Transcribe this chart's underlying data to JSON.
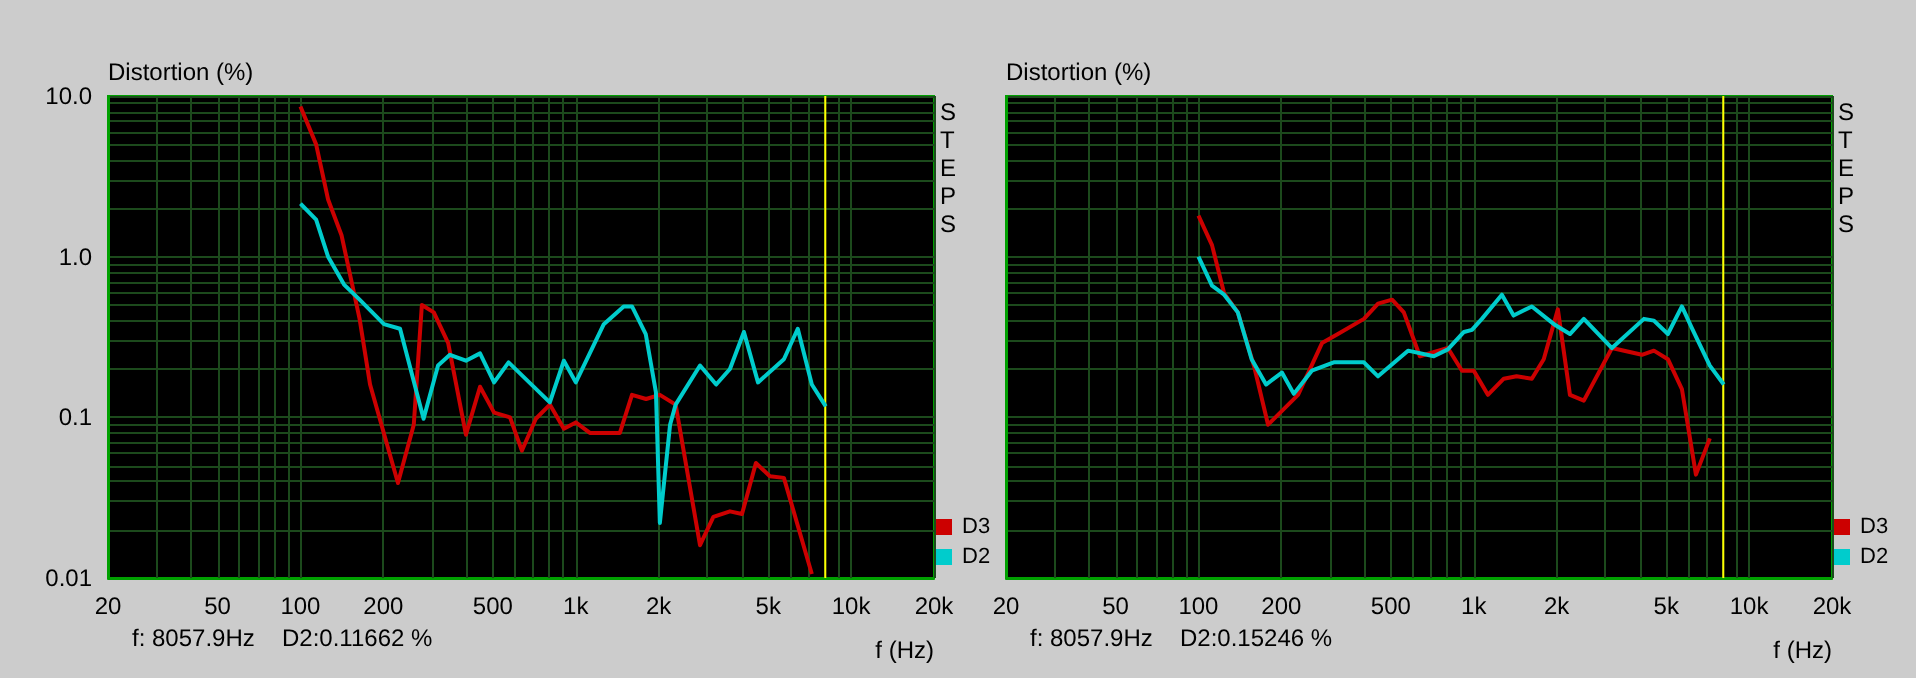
{
  "chart_data": [
    {
      "type": "line",
      "ylabel": "Distortion (%)",
      "xlabel": "f (Hz)",
      "log": "xy",
      "grid": true,
      "legend": "bottom right",
      "marker": "none",
      "line_style": "solid",
      "xlim": [
        20,
        20000
      ],
      "ylim": [
        0.01,
        10
      ],
      "xticks": [
        20,
        {
          "value": 30,
          "label": null
        },
        {
          "value": 40,
          "label": null
        },
        50,
        {
          "value": 60,
          "label": null
        },
        {
          "value": 70,
          "label": null
        },
        {
          "value": 80,
          "label": null
        },
        {
          "value": 90,
          "label": null
        },
        100,
        200,
        {
          "value": 300,
          "label": null
        },
        {
          "value": 400,
          "label": null
        },
        500,
        {
          "value": 600,
          "label": null
        },
        {
          "value": 700,
          "label": null
        },
        {
          "value": 800,
          "label": null
        },
        {
          "value": 900,
          "label": null
        },
        {
          "value": 1000,
          "label": "1k"
        },
        {
          "value": 2000,
          "label": "2k"
        },
        {
          "value": 3000,
          "label": null
        },
        {
          "value": 4000,
          "label": null
        },
        {
          "value": 5000,
          "label": "5k"
        },
        {
          "value": 6000,
          "label": null
        },
        {
          "value": 7000,
          "label": null
        },
        {
          "value": 8000,
          "label": null
        },
        {
          "value": 9000,
          "label": null
        },
        {
          "value": 10000,
          "label": "10k"
        },
        {
          "value": 20000,
          "label": "20k"
        }
      ],
      "yticks": [
        0.01,
        {
          "value": 0.02,
          "label": null
        },
        {
          "value": 0.03,
          "label": null
        },
        {
          "value": 0.04,
          "label": null
        },
        {
          "value": 0.05,
          "label": null
        },
        {
          "value": 0.06,
          "label": null
        },
        {
          "value": 0.07,
          "label": null
        },
        {
          "value": 0.08,
          "label": null
        },
        {
          "value": 0.09,
          "label": null
        },
        0.1,
        {
          "value": 0.2,
          "label": null
        },
        {
          "value": 0.3,
          "label": null
        },
        {
          "value": 0.4,
          "label": null
        },
        {
          "value": 0.5,
          "label": null
        },
        {
          "value": 0.6,
          "label": null
        },
        {
          "value": 0.7,
          "label": null
        },
        {
          "value": 0.8,
          "label": null
        },
        {
          "value": 0.9,
          "label": null
        },
        {
          "value": 1,
          "label": "1.0"
        },
        {
          "value": 2,
          "label": null
        },
        {
          "value": 3,
          "label": null
        },
        {
          "value": 4,
          "label": null
        },
        {
          "value": 5,
          "label": null
        },
        {
          "value": 6,
          "label": null
        },
        {
          "value": 7,
          "label": null
        },
        {
          "value": 8,
          "label": null
        },
        {
          "value": 9,
          "label": null
        },
        {
          "value": 10,
          "label": "10.0"
        }
      ],
      "ref_lines": [
        {
          "axis": "x",
          "value": 8057.9,
          "color": "#ffff00"
        }
      ],
      "annotations": [
        "STEPS",
        "f: 8057.9Hz",
        "D2:0.11662 %"
      ],
      "series": [
        {
          "name": "D3",
          "color": "#cc0000",
          "x": [
            100,
            114,
            126,
            141,
            164,
            179,
            226,
            258,
            276,
            305,
            344,
            399,
            449,
            505,
            577,
            637,
            716,
            805,
            905,
            1000,
            1125,
            1446,
            1600,
            1800,
            2020,
            2305,
            2826,
            3160,
            3630,
            4015,
            4510,
            5070,
            5700,
            7200
          ],
          "values": [
            8.6,
            5.0,
            2.27,
            1.36,
            0.41,
            0.16,
            0.039,
            0.09,
            0.5,
            0.45,
            0.29,
            0.078,
            0.155,
            0.107,
            0.1,
            0.062,
            0.098,
            0.12,
            0.085,
            0.093,
            0.08,
            0.08,
            0.138,
            0.13,
            0.138,
            0.12,
            0.016,
            0.024,
            0.026,
            0.025,
            0.052,
            0.043,
            0.042,
            0.0106
          ]
        },
        {
          "name": "D2",
          "color": "#00cccc",
          "x": [
            100,
            114,
            126,
            144,
            164,
            201,
            230,
            280,
            316,
            349,
            399,
            449,
            505,
            570,
            805,
            905,
            1000,
            1264,
            1493,
            1600,
            1795,
            1955,
            2020,
            2200,
            2305,
            2826,
            3235,
            3630,
            4080,
            4590,
            5700,
            6400,
            7200,
            8090
          ],
          "values": [
            2.14,
            1.7,
            1.0,
            0.67,
            0.54,
            0.38,
            0.356,
            0.098,
            0.21,
            0.245,
            0.225,
            0.25,
            0.165,
            0.22,
            0.124,
            0.225,
            0.165,
            0.38,
            0.49,
            0.49,
            0.33,
            0.143,
            0.022,
            0.09,
            0.12,
            0.21,
            0.16,
            0.2,
            0.34,
            0.165,
            0.23,
            0.356,
            0.16,
            0.117
          ]
        }
      ]
    },
    {
      "type": "line",
      "ylabel": "Distortion (%)",
      "xlabel": "f (Hz)",
      "log": "xy",
      "grid": true,
      "legend": "bottom right",
      "marker": "none",
      "line_style": "solid",
      "tick_labels": "x",
      "xlim": [
        20,
        20000
      ],
      "ylim": [
        0.01,
        10
      ],
      "xticks": [
        20,
        {
          "value": 30,
          "label": null
        },
        {
          "value": 40,
          "label": null
        },
        50,
        {
          "value": 60,
          "label": null
        },
        {
          "value": 70,
          "label": null
        },
        {
          "value": 80,
          "label": null
        },
        {
          "value": 90,
          "label": null
        },
        100,
        200,
        {
          "value": 300,
          "label": null
        },
        {
          "value": 400,
          "label": null
        },
        500,
        {
          "value": 600,
          "label": null
        },
        {
          "value": 700,
          "label": null
        },
        {
          "value": 800,
          "label": null
        },
        {
          "value": 900,
          "label": null
        },
        {
          "value": 1000,
          "label": "1k"
        },
        {
          "value": 2000,
          "label": "2k"
        },
        {
          "value": 3000,
          "label": null
        },
        {
          "value": 4000,
          "label": null
        },
        {
          "value": 5000,
          "label": "5k"
        },
        {
          "value": 6000,
          "label": null
        },
        {
          "value": 7000,
          "label": null
        },
        {
          "value": 8000,
          "label": null
        },
        {
          "value": 9000,
          "label": null
        },
        {
          "value": 10000,
          "label": "10k"
        },
        {
          "value": 20000,
          "label": "20k"
        }
      ],
      "yticks": [
        0.01,
        {
          "value": 0.02,
          "label": null
        },
        {
          "value": 0.03,
          "label": null
        },
        {
          "value": 0.04,
          "label": null
        },
        {
          "value": 0.05,
          "label": null
        },
        {
          "value": 0.06,
          "label": null
        },
        {
          "value": 0.07,
          "label": null
        },
        {
          "value": 0.08,
          "label": null
        },
        {
          "value": 0.09,
          "label": null
        },
        0.1,
        {
          "value": 0.2,
          "label": null
        },
        {
          "value": 0.3,
          "label": null
        },
        {
          "value": 0.4,
          "label": null
        },
        {
          "value": 0.5,
          "label": null
        },
        {
          "value": 0.6,
          "label": null
        },
        {
          "value": 0.7,
          "label": null
        },
        {
          "value": 0.8,
          "label": null
        },
        {
          "value": 0.9,
          "label": null
        },
        1,
        {
          "value": 2,
          "label": null
        },
        {
          "value": 3,
          "label": null
        },
        {
          "value": 4,
          "label": null
        },
        {
          "value": 5,
          "label": null
        },
        {
          "value": 6,
          "label": null
        },
        {
          "value": 7,
          "label": null
        },
        {
          "value": 8,
          "label": null
        },
        {
          "value": 9,
          "label": null
        },
        10
      ],
      "ref_lines": [
        {
          "axis": "x",
          "value": 8057.9,
          "color": "#ffff00"
        }
      ],
      "annotations": [
        "STEPS",
        "f: 8057.9Hz",
        "D2:0.15246 %"
      ],
      "series": [
        {
          "name": "D3",
          "color": "#cc0000",
          "x": [
            100,
            112,
            124,
            139,
            159,
            179,
            230,
            281,
            321,
            399,
            449,
            505,
            557,
            637,
            805,
            906,
            1000,
            1125,
            1285,
            1430,
            1625,
            1795,
            2020,
            2235,
            2510,
            3175,
            4080,
            4510,
            5070,
            5700,
            6410,
            7200
          ],
          "values": [
            1.8,
            1.18,
            0.59,
            0.45,
            0.21,
            0.09,
            0.138,
            0.29,
            0.33,
            0.41,
            0.51,
            0.54,
            0.45,
            0.24,
            0.27,
            0.195,
            0.195,
            0.138,
            0.174,
            0.18,
            0.174,
            0.23,
            0.47,
            0.138,
            0.127,
            0.27,
            0.245,
            0.26,
            0.23,
            0.15,
            0.044,
            0.074
          ]
        },
        {
          "name": "D2",
          "color": "#00cccc",
          "x": [
            100,
            112,
            124,
            139,
            156,
            176,
            201,
            222,
            258,
            310,
            399,
            449,
            577,
            716,
            805,
            921,
            985,
            1070,
            1265,
            1395,
            1625,
            1955,
            2235,
            2510,
            3175,
            4150,
            4510,
            5070,
            5700,
            6190,
            7200,
            8090
          ],
          "values": [
            1.0,
            0.66,
            0.58,
            0.45,
            0.23,
            0.16,
            0.19,
            0.14,
            0.195,
            0.22,
            0.22,
            0.18,
            0.26,
            0.24,
            0.265,
            0.34,
            0.35,
            0.41,
            0.58,
            0.43,
            0.49,
            0.38,
            0.33,
            0.41,
            0.27,
            0.41,
            0.4,
            0.33,
            0.49,
            0.36,
            0.21,
            0.16
          ]
        }
      ]
    }
  ]
}
